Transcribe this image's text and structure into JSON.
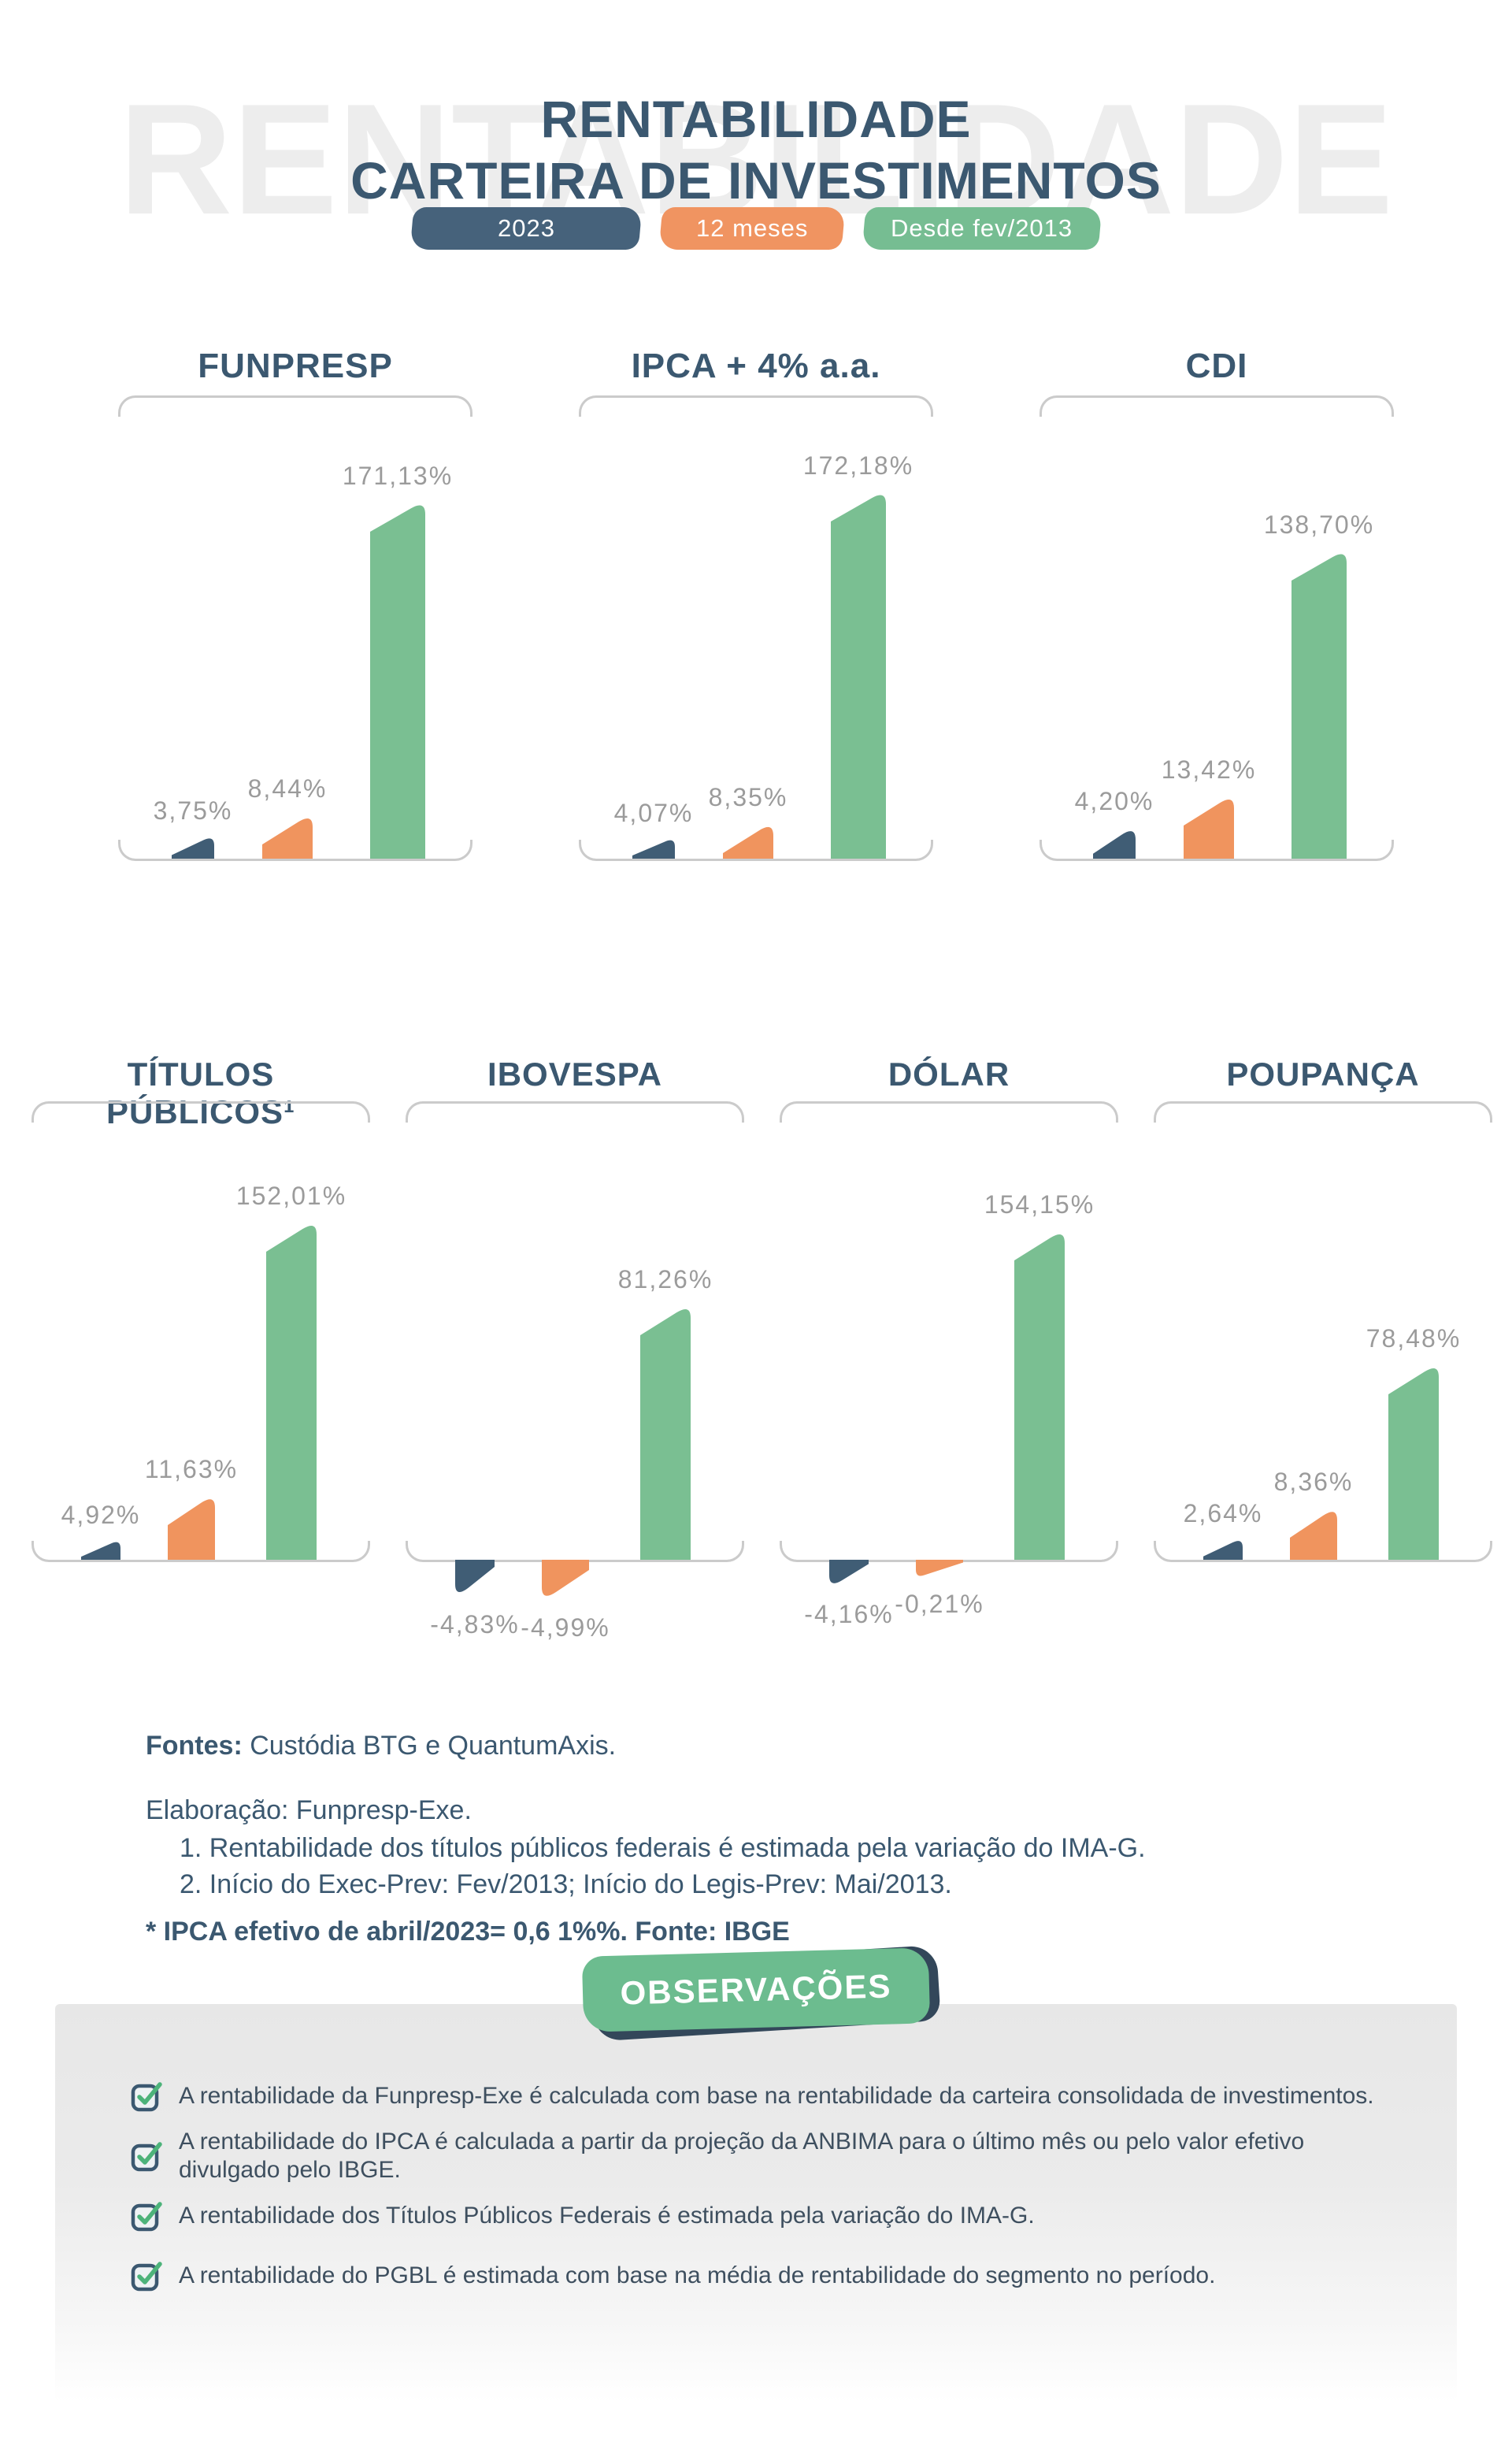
{
  "header": {
    "watermark": "RENTABILIDADE",
    "title_line1": "RENTABILIDADE",
    "title_line2": "CARTEIRA DE INVESTIMENTOS"
  },
  "legend": {
    "items": [
      {
        "label": "2023",
        "color": "#46627b"
      },
      {
        "label": "12 meses",
        "color": "#f09461"
      },
      {
        "label": "Desde fev/2013",
        "color": "#76bd92"
      }
    ]
  },
  "chart_data": {
    "type": "bar",
    "series": [
      "2023",
      "12 meses",
      "Desde fev/2013"
    ],
    "series_colors": [
      "#405d75",
      "#f0945e",
      "#7abf92"
    ],
    "value_suffix": "%",
    "baseline": 0,
    "grid": false,
    "legend_position": "top",
    "panels": [
      {
        "title": "FUNPRESP",
        "values": [
          3.75,
          8.44,
          171.13
        ],
        "value_labels": [
          "3,75%",
          "8,44%",
          "171,13%"
        ]
      },
      {
        "title": "IPCA + 4% a.a.",
        "values": [
          4.07,
          8.35,
          172.18
        ],
        "value_labels": [
          "4,07%",
          "8,35%",
          "172,18%"
        ]
      },
      {
        "title": "CDI",
        "values": [
          4.2,
          13.42,
          138.7
        ],
        "value_labels": [
          "4,20%",
          "13,42%",
          "138,70%"
        ]
      },
      {
        "title": "TÍTULOS PÚBLICOS¹",
        "values": [
          4.92,
          11.63,
          152.01
        ],
        "value_labels": [
          "4,92%",
          "11,63%",
          "152,01%"
        ]
      },
      {
        "title": "IBOVESPA",
        "values": [
          -4.83,
          -4.99,
          81.26
        ],
        "value_labels": [
          "-4,83%",
          "-4,99%",
          "81,26%"
        ]
      },
      {
        "title": "DÓLAR",
        "values": [
          -4.16,
          -0.21,
          154.15
        ],
        "value_labels": [
          "-4,16%",
          "-0,21%",
          "154,15%"
        ]
      },
      {
        "title": "POUPANÇA",
        "values": [
          2.64,
          8.36,
          78.48
        ],
        "value_labels": [
          "2,64%",
          "8,36%",
          "78,48%"
        ]
      }
    ]
  },
  "notes": {
    "fontes_label": "Fontes:",
    "fontes_text": " Custódia BTG e QuantumAxis.",
    "elaboracao": "Elaboração: Funpresp-Exe.",
    "item1": "1. Rentabilidade dos títulos públicos federais é estimada pela variação do IMA-G.",
    "item2": "2. Início do Exec-Prev: Fev/2013; Início do Legis-Prev: Mai/2013.",
    "ipca_note": "* IPCA efetivo de abril/2023= 0,6 1%%. Fonte: IBGE"
  },
  "observations": {
    "badge_label": "OBSERVAÇÕES",
    "items": [
      "A rentabilidade da Funpresp-Exe é calculada com base na rentabilidade da carteira consolidada de investimentos.",
      "A rentabilidade do IPCA é calculada a partir da projeção da ANBIMA para o último mês ou pelo valor efetivo divulgado pelo IBGE.",
      "A rentabilidade dos Títulos Públicos Federais é estimada pela variação do IMA-G.",
      "A rentabilidade do PGBL é estimada com base na média de rentabilidade do segmento no período."
    ]
  }
}
